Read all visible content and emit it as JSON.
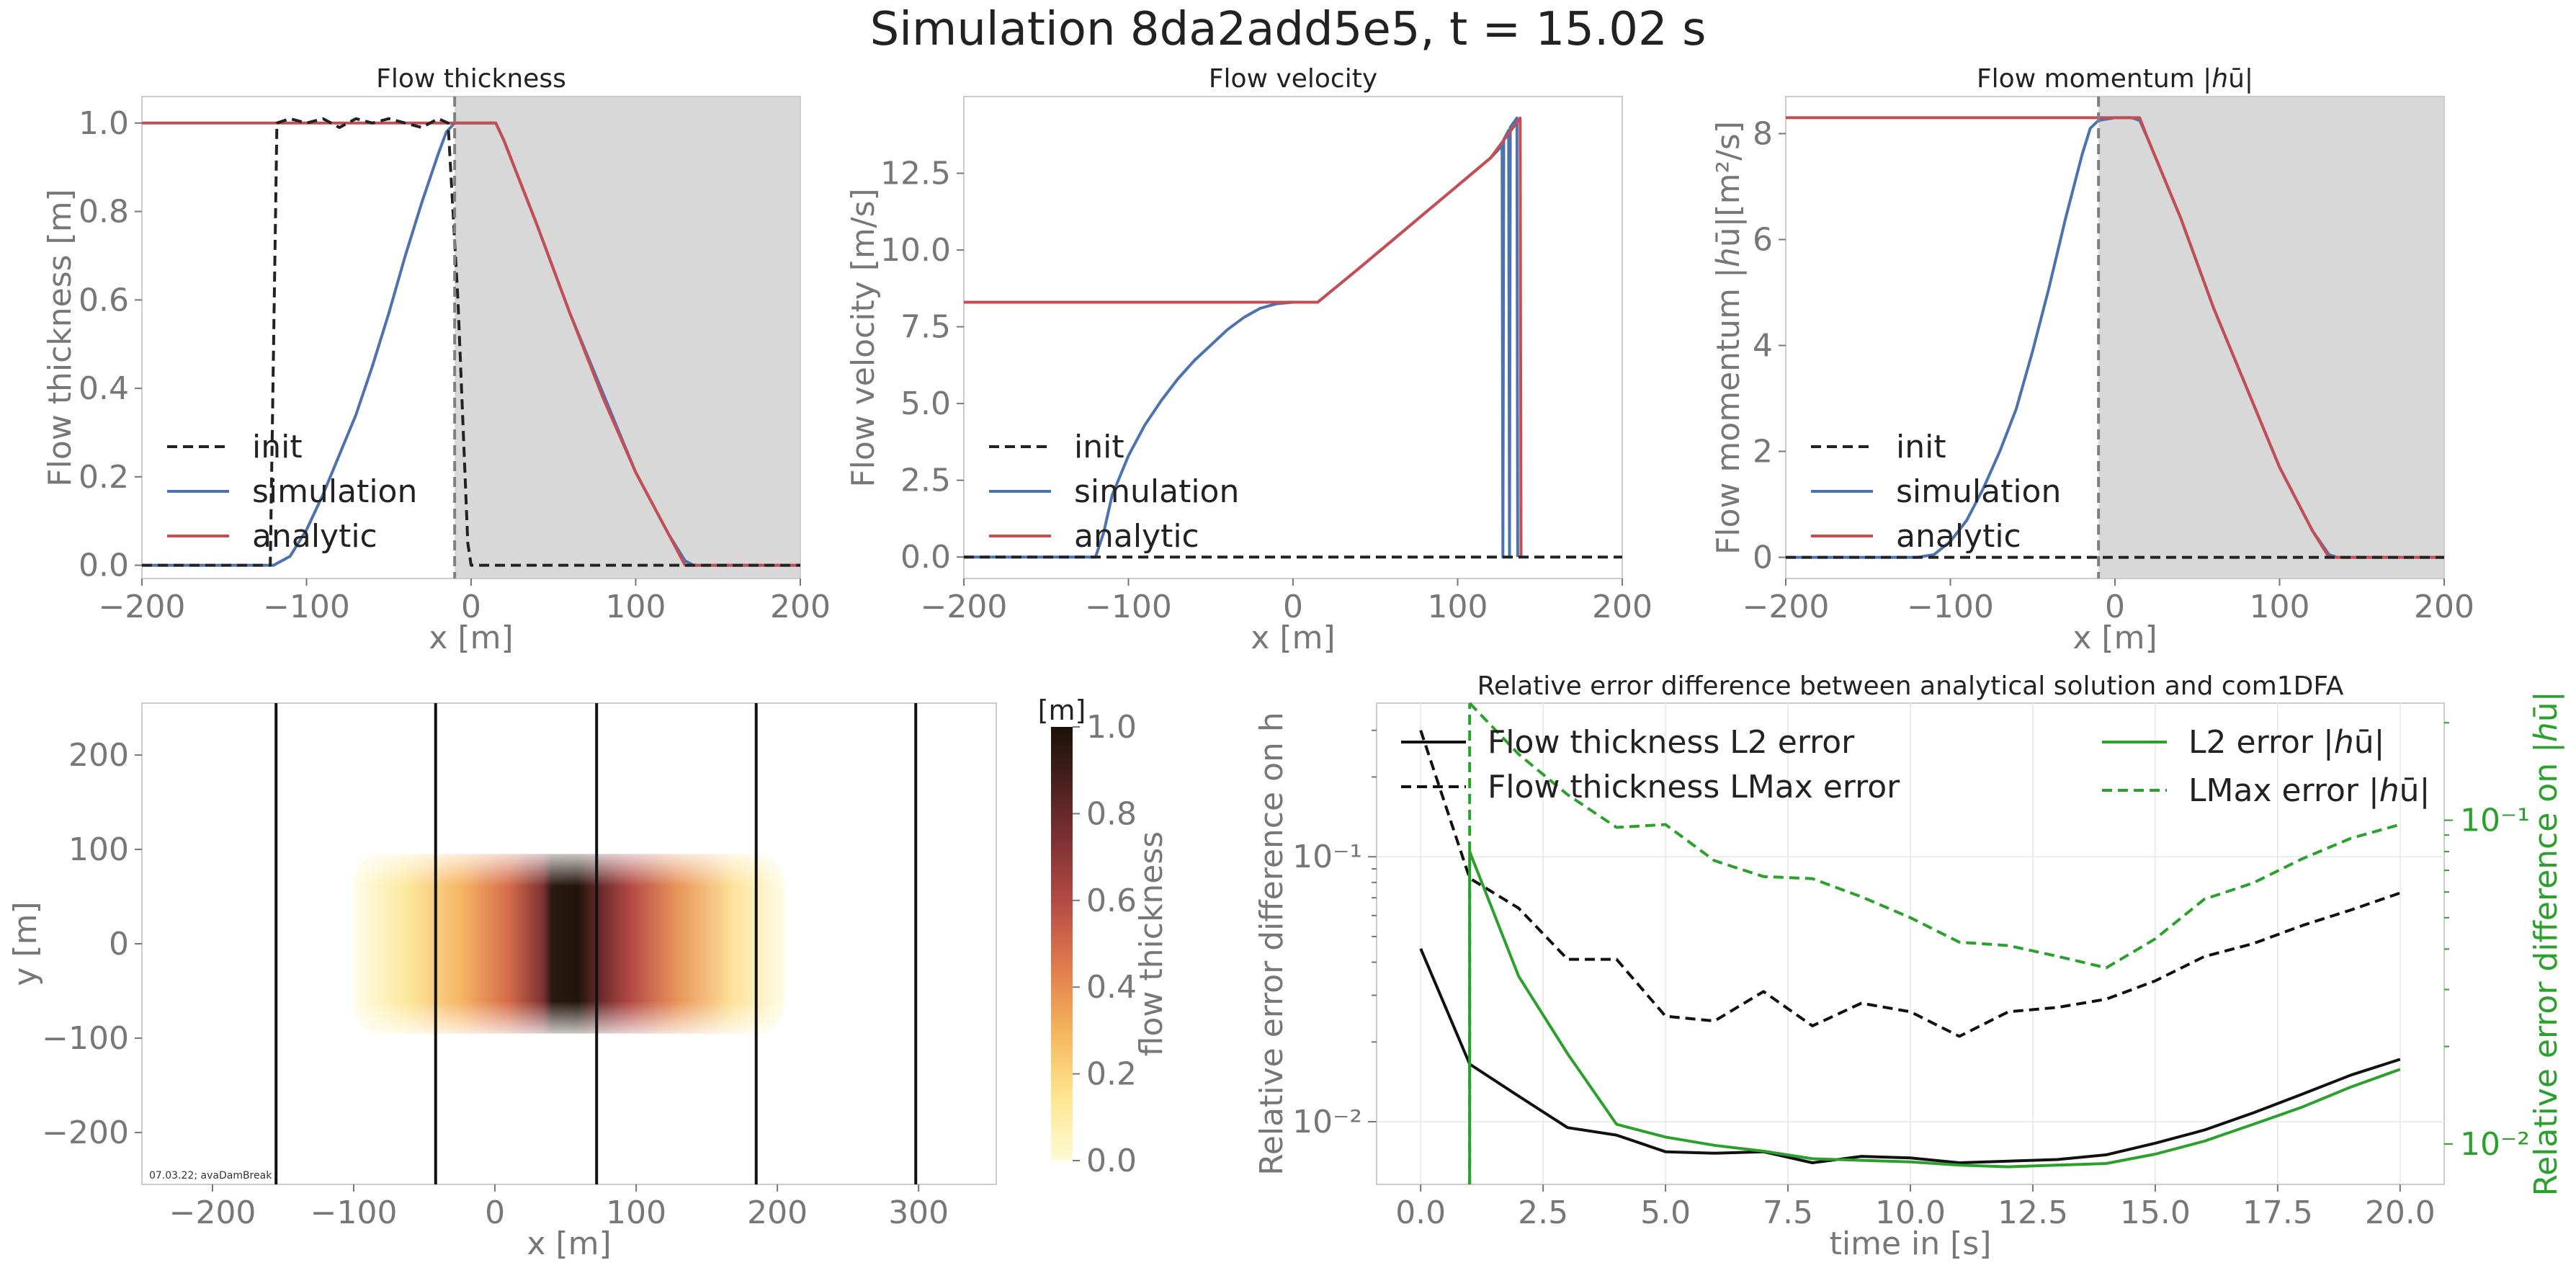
{
  "suptitle": "Simulation 8da2add5e5, t = 15.02 s",
  "colors": {
    "init": "#222222",
    "simulation": "#4c72b0",
    "analytic": "#c44e52",
    "green": "#2ca02c",
    "shade": "#d8d8d8",
    "marker": "#808080"
  },
  "legend": {
    "init": "init",
    "simulation": "simulation",
    "analytic": "analytic"
  },
  "panels": {
    "thickness": {
      "title": "Flow thickness",
      "xlabel": "x [m]",
      "ylabel": "Flow thickness [m]",
      "xticks": [
        "−200",
        "−100",
        "0",
        "100",
        "200"
      ],
      "yticks": [
        "0.0",
        "0.2",
        "0.4",
        "0.6",
        "0.8",
        "1.0"
      ]
    },
    "velocity": {
      "title": "Flow velocity",
      "xlabel": "x [m]",
      "ylabel": "Flow velocity [m/s]",
      "xticks": [
        "−200",
        "−100",
        "0",
        "100",
        "200"
      ],
      "yticks": [
        "0.0",
        "2.5",
        "5.0",
        "7.5",
        "10.0",
        "12.5"
      ]
    },
    "momentum": {
      "title": "Flow momentum |ℎū|",
      "xlabel": "x [m]",
      "ylabel": "Flow momentum |ℎū|[m²/s]",
      "xticks": [
        "−200",
        "−100",
        "0",
        "100",
        "200"
      ],
      "yticks": [
        "0",
        "2",
        "4",
        "6",
        "8"
      ]
    },
    "map": {
      "xlabel": "x [m]",
      "ylabel": "y [m]",
      "xticks": [
        "−200",
        "−100",
        "0",
        "100",
        "200",
        "300"
      ],
      "yticks": [
        "−200",
        "−100",
        "0",
        "100",
        "200"
      ],
      "stamp": "07.03.22; avaDamBreak",
      "cbar_unit": "[m]",
      "cbar_label": "flow thickness",
      "cbar_ticks": [
        "0.0",
        "0.2",
        "0.4",
        "0.6",
        "0.8",
        "1.0"
      ]
    },
    "error": {
      "title": "Relative error difference between analytical solution and com1DFA",
      "xlabel": "time in [s]",
      "ylabel_left": "Relative error difference on h",
      "ylabel_right": "Relative error difference on |ℎū|",
      "xticks": [
        "0.0",
        "2.5",
        "5.0",
        "7.5",
        "10.0",
        "12.5",
        "15.0",
        "17.5",
        "20.0"
      ],
      "yticks_left": [
        "10⁻¹",
        "10⁻²"
      ],
      "yticks_right": [
        "10⁻¹",
        "10⁻²"
      ],
      "legend": {
        "l2h": "Flow thickness L2 error",
        "lmaxh": "Flow thickness LMax error",
        "l2hu": "L2 error |ℎū|",
        "lmaxhu": "LMax error |ℎū|"
      }
    }
  },
  "chart_data": [
    {
      "type": "line",
      "title": "Flow thickness",
      "xlabel": "x [m]",
      "ylabel": "Flow thickness [m]",
      "xlim": [
        -200,
        200
      ],
      "ylim": [
        -0.03,
        1.06
      ],
      "marker_x": -10,
      "shaded_from_x": -10,
      "series": [
        {
          "name": "init",
          "x": [
            -200,
            -122,
            -118,
            -110,
            -100,
            -90,
            -80,
            -70,
            -60,
            -50,
            -40,
            -30,
            -20,
            -14,
            -8,
            -2,
            0,
            200
          ],
          "y": [
            0,
            0,
            1.0,
            1.01,
            1.0,
            1.01,
            0.99,
            1.01,
            1.0,
            1.01,
            1.0,
            0.99,
            1.01,
            1.0,
            0.6,
            0.05,
            0,
            0
          ]
        },
        {
          "name": "simulation",
          "x": [
            -200,
            -120,
            -110,
            -100,
            -90,
            -80,
            -70,
            -60,
            -50,
            -40,
            -30,
            -20,
            -15,
            -10,
            0,
            10,
            15,
            20,
            40,
            60,
            80,
            100,
            120,
            130,
            135,
            200
          ],
          "y": [
            0,
            0,
            0.02,
            0.08,
            0.16,
            0.25,
            0.34,
            0.45,
            0.57,
            0.7,
            0.82,
            0.93,
            0.98,
            1.0,
            1.0,
            1.0,
            1.0,
            0.96,
            0.77,
            0.57,
            0.39,
            0.21,
            0.07,
            0.01,
            0,
            0
          ]
        },
        {
          "name": "analytic",
          "x": [
            -200,
            -10,
            15,
            20,
            40,
            60,
            80,
            100,
            120,
            130,
            200
          ],
          "y": [
            1.0,
            1.0,
            1.0,
            0.96,
            0.77,
            0.57,
            0.38,
            0.21,
            0.07,
            0.0,
            0.0
          ]
        }
      ]
    },
    {
      "type": "line",
      "title": "Flow velocity",
      "xlabel": "x [m]",
      "ylabel": "Flow velocity [m/s]",
      "xlim": [
        -200,
        200
      ],
      "ylim": [
        -0.7,
        15.0
      ],
      "series": [
        {
          "name": "init",
          "x": [
            -200,
            200
          ],
          "y": [
            0,
            0
          ]
        },
        {
          "name": "simulation",
          "x": [
            -200,
            -120,
            -115,
            -110,
            -100,
            -90,
            -80,
            -70,
            -60,
            -50,
            -40,
            -30,
            -20,
            -10,
            0,
            10,
            15,
            40,
            60,
            80,
            100,
            120,
            127,
            127.5,
            128,
            131,
            131.5,
            132,
            136,
            136.5
          ],
          "y": [
            0,
            0,
            0.8,
            2.0,
            3.3,
            4.3,
            5.1,
            5.8,
            6.4,
            6.9,
            7.4,
            7.8,
            8.1,
            8.25,
            8.3,
            8.3,
            8.3,
            9.4,
            10.3,
            11.2,
            12.1,
            13.0,
            13.4,
            0,
            13.6,
            13.9,
            0,
            14.0,
            14.3,
            0
          ]
        },
        {
          "name": "analytic",
          "x": [
            -200,
            15,
            40,
            60,
            80,
            100,
            120,
            138,
            138.5
          ],
          "y": [
            8.3,
            8.3,
            9.4,
            10.3,
            11.2,
            12.1,
            13.0,
            14.3,
            0
          ]
        }
      ]
    },
    {
      "type": "line",
      "title": "Flow momentum |ℎū|",
      "xlabel": "x [m]",
      "ylabel": "Flow momentum |ℎū|[m²/s]",
      "xlim": [
        -200,
        200
      ],
      "ylim": [
        -0.4,
        8.7
      ],
      "marker_x": -10,
      "shaded_from_x": -10,
      "series": [
        {
          "name": "init",
          "x": [
            -200,
            200
          ],
          "y": [
            0,
            0
          ]
        },
        {
          "name": "simulation",
          "x": [
            -200,
            -120,
            -110,
            -100,
            -90,
            -80,
            -70,
            -60,
            -50,
            -40,
            -30,
            -20,
            -15,
            -10,
            0,
            10,
            15,
            20,
            40,
            60,
            80,
            100,
            120,
            130,
            135,
            200
          ],
          "y": [
            0,
            0,
            0.05,
            0.3,
            0.7,
            1.3,
            2.0,
            2.8,
            3.9,
            5.1,
            6.4,
            7.6,
            8.1,
            8.25,
            8.3,
            8.3,
            8.25,
            7.9,
            6.4,
            4.7,
            3.2,
            1.7,
            0.5,
            0.05,
            0,
            0
          ]
        },
        {
          "name": "analytic",
          "x": [
            -200,
            -10,
            15,
            20,
            40,
            60,
            80,
            100,
            120,
            130,
            200
          ],
          "y": [
            8.3,
            8.3,
            8.3,
            7.9,
            6.4,
            4.7,
            3.2,
            1.7,
            0.5,
            0.0,
            0.0
          ]
        }
      ]
    },
    {
      "type": "heatmap",
      "xlabel": "x [m]",
      "ylabel": "y [m]",
      "xlim": [
        -250,
        355
      ],
      "ylim": [
        -255,
        255
      ],
      "vlines_x": [
        -155,
        -42,
        72,
        185,
        298
      ],
      "extent": {
        "x": [
          -100,
          205
        ],
        "y": [
          -95,
          95
        ]
      },
      "peak_x": 40,
      "colorbar": {
        "label": "flow thickness",
        "unit": "[m]",
        "range": [
          0,
          1
        ]
      }
    },
    {
      "type": "line",
      "title": "Relative error difference between analytical solution and com1DFA",
      "xlabel": "time in [s]",
      "xlim": [
        -0.9,
        20.9
      ],
      "ylim_left": [
        0.0058,
        0.38
      ],
      "ylim_right": [
        0.0075,
        0.23
      ],
      "yscale": "log",
      "x": [
        0,
        1,
        2,
        3,
        4,
        5,
        6,
        7,
        8,
        9,
        10,
        11,
        12,
        13,
        14,
        15,
        16,
        17,
        18,
        19,
        20
      ],
      "series": [
        {
          "name": "Flow thickness L2 error",
          "axis": "left",
          "values": [
            0.045,
            0.0165,
            0.0125,
            0.0095,
            0.0089,
            0.0077,
            0.0076,
            0.0077,
            0.007,
            0.0074,
            0.0073,
            0.007,
            0.0071,
            0.0072,
            0.0075,
            0.0083,
            0.0093,
            0.0108,
            0.0127,
            0.015,
            0.0172
          ]
        },
        {
          "name": "Flow thickness LMax error",
          "axis": "left",
          "values": [
            0.3,
            0.083,
            0.064,
            0.041,
            0.041,
            0.025,
            0.024,
            0.031,
            0.023,
            0.028,
            0.026,
            0.021,
            0.026,
            0.027,
            0.029,
            0.034,
            0.042,
            0.047,
            0.055,
            0.063,
            0.073
          ]
        },
        {
          "name": "L2 error |ℎū|",
          "axis": "right",
          "values": [
            null,
            0.08,
            0.033,
            0.019,
            0.0115,
            0.0105,
            0.0099,
            0.0095,
            0.009,
            0.0089,
            0.0088,
            0.0086,
            0.0085,
            0.0086,
            0.0087,
            0.0093,
            0.0102,
            0.0115,
            0.013,
            0.015,
            0.017
          ]
        },
        {
          "name": "LMax error |ℎū|",
          "axis": "right",
          "values": [
            null,
            0.23,
            0.16,
            0.12,
            0.095,
            0.097,
            0.075,
            0.067,
            0.066,
            0.058,
            0.05,
            0.042,
            0.041,
            0.038,
            0.035,
            0.043,
            0.057,
            0.064,
            0.076,
            0.088,
            0.097
          ]
        }
      ]
    }
  ]
}
